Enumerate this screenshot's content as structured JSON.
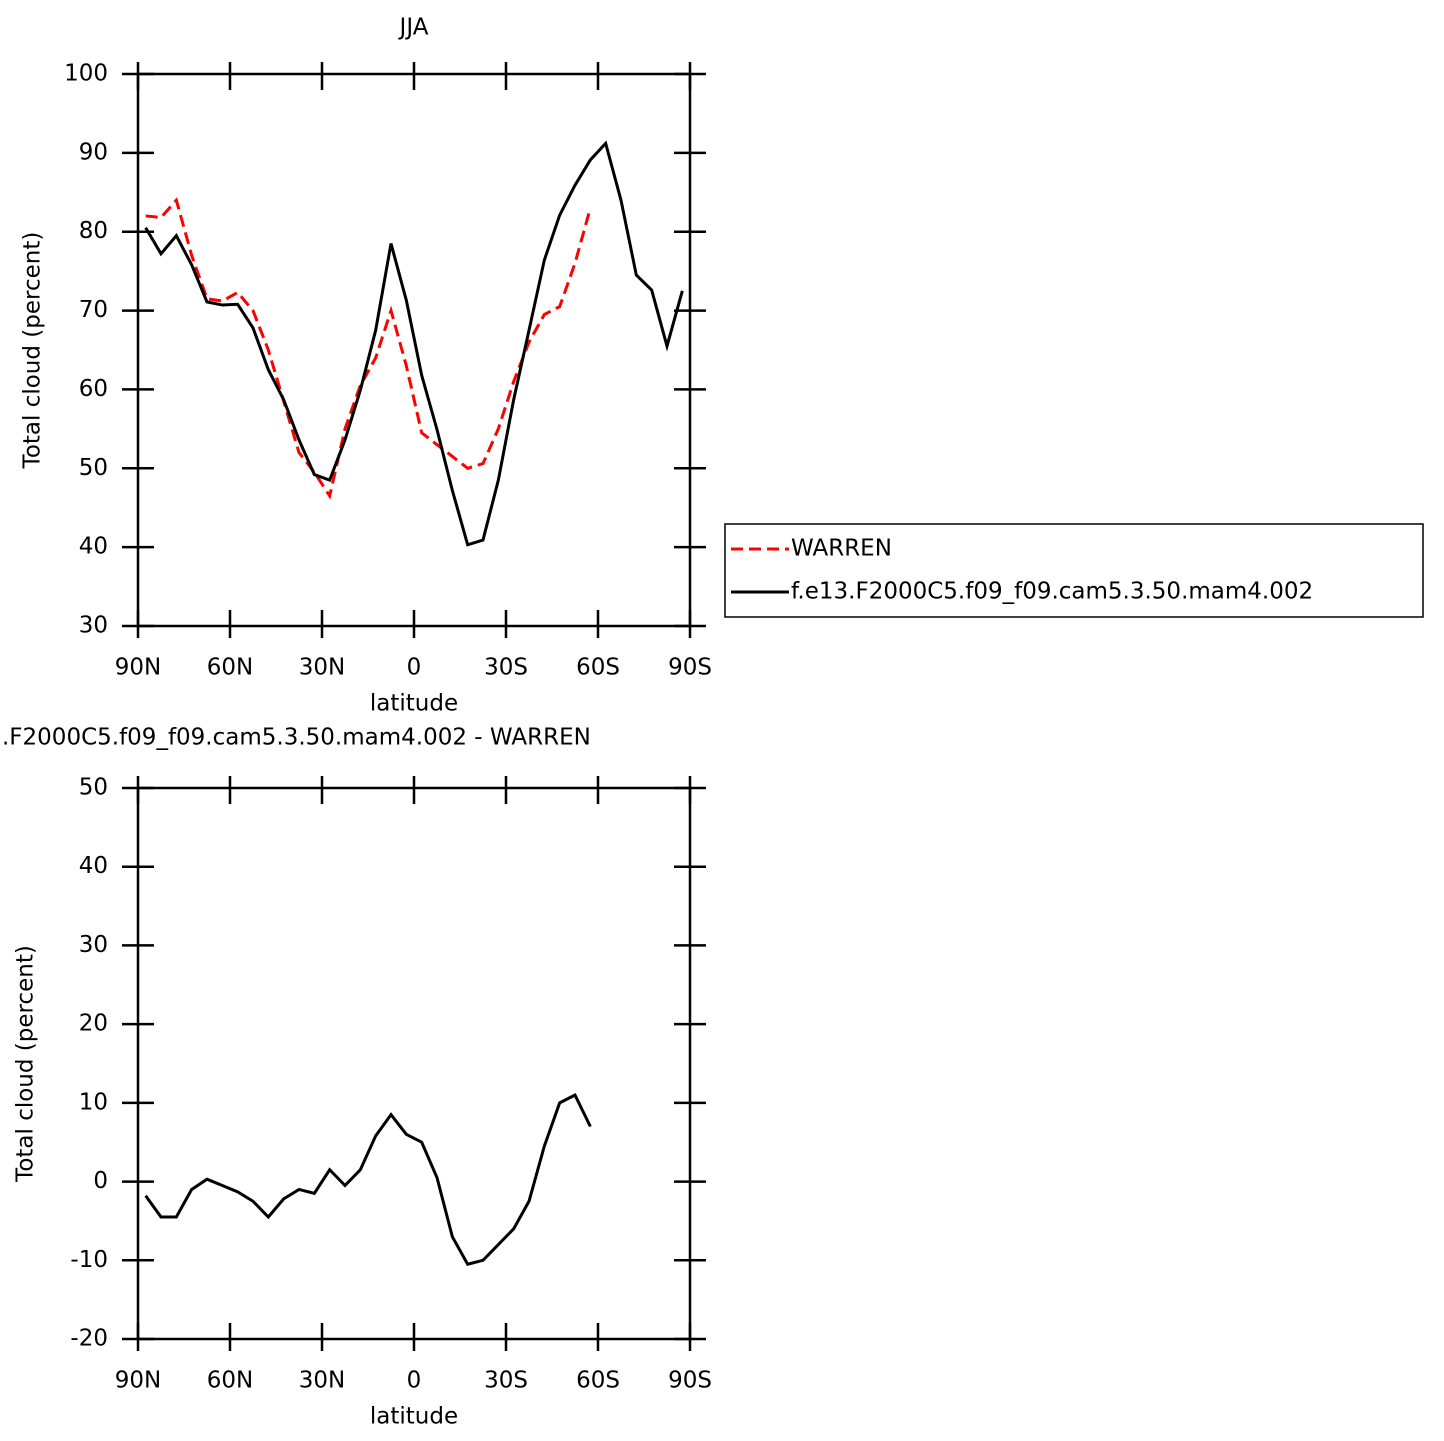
{
  "chart_data": [
    {
      "type": "line",
      "title": "JJA",
      "xlabel": "latitude",
      "ylabel": "Total cloud (percent)",
      "x": [
        87.5,
        82.5,
        77.5,
        72.5,
        67.5,
        62.5,
        57.5,
        52.5,
        47.5,
        42.5,
        37.5,
        32.5,
        27.5,
        22.5,
        17.5,
        12.5,
        7.5,
        2.5,
        -2.5,
        -7.5,
        -12.5,
        -17.5,
        -22.5,
        -27.5,
        -32.5,
        -37.5,
        -42.5,
        -47.5,
        -52.5,
        -57.5,
        -62.5,
        -67.5,
        -72.5,
        -77.5,
        -82.5,
        -87.5
      ],
      "series": [
        {
          "name": "WARREN",
          "color": "#ff0000",
          "dashed": true,
          "values": [
            82,
            81.8,
            84,
            77,
            71.5,
            71.2,
            72.3,
            70,
            65,
            58.5,
            52,
            49.5,
            46.5,
            55,
            60.5,
            64,
            70,
            63,
            54.5,
            53,
            51.5,
            50,
            50.6,
            55,
            61,
            66,
            69.5,
            70.5,
            76,
            83,
            null,
            null,
            null,
            null,
            null,
            null
          ]
        },
        {
          "name": "f.e13.F2000C5.f09_f09.cam5.3.50.mam4.002",
          "color": "#000000",
          "dashed": false,
          "values": [
            80.5,
            77.2,
            79.5,
            75.8,
            71.1,
            70.7,
            70.8,
            67.8,
            62.5,
            58.7,
            53.6,
            49.2,
            48.5,
            53.6,
            59.9,
            67.5,
            78.5,
            71.3,
            61.8,
            54.9,
            47.2,
            40.3,
            40.9,
            48.5,
            58.7,
            67.5,
            76.4,
            82.1,
            85.9,
            89.1,
            91.2,
            84.0,
            74.5,
            72.6,
            65.5,
            72.5
          ]
        }
      ],
      "xlim": [
        90,
        -90
      ],
      "xticks": [
        {
          "value": 90,
          "label": "90N"
        },
        {
          "value": 60,
          "label": "60N"
        },
        {
          "value": 30,
          "label": "30N"
        },
        0,
        {
          "value": -30,
          "label": "30S"
        },
        {
          "value": -60,
          "label": "60S"
        },
        {
          "value": -90,
          "label": "90S"
        }
      ],
      "ylim": [
        30,
        100
      ],
      "yticks": [
        30,
        40,
        50,
        60,
        70,
        80,
        90,
        100
      ],
      "legend": "right"
    },
    {
      "type": "line",
      "title": ".F2000C5.f09_f09.cam5.3.50.mam4.002 - WARREN",
      "xlabel": "latitude",
      "ylabel": "Total cloud (percent)",
      "x": [
        87.5,
        82.5,
        77.5,
        72.5,
        67.5,
        62.5,
        57.5,
        52.5,
        47.5,
        42.5,
        37.5,
        32.5,
        27.5,
        22.5,
        17.5,
        12.5,
        7.5,
        2.5,
        -2.5,
        -7.5,
        -12.5,
        -17.5,
        -22.5,
        -27.5,
        -32.5,
        -37.5,
        -42.5,
        -47.5,
        -52.5,
        -57.5,
        -62.5,
        -67.5,
        -72.5,
        -77.5,
        -82.5,
        -87.5
      ],
      "series": [
        {
          "color": "#000000",
          "dashed": false,
          "values": [
            -1.8,
            -4.5,
            -4.5,
            -1,
            0.3,
            -0.5,
            -1.3,
            -2.5,
            -4.5,
            -2.2,
            -1,
            -1.5,
            1.5,
            -0.5,
            1.5,
            5.8,
            8.5,
            6,
            5,
            0.5,
            -7,
            -10.5,
            -10,
            -8,
            -6,
            -2.5,
            4.5,
            10,
            11,
            7,
            null,
            null,
            null,
            null,
            null,
            null
          ]
        }
      ],
      "xlim": [
        90,
        -90
      ],
      "xticks": [
        {
          "value": 90,
          "label": "90N"
        },
        {
          "value": 60,
          "label": "60N"
        },
        {
          "value": 30,
          "label": "30N"
        },
        0,
        {
          "value": -30,
          "label": "30S"
        },
        {
          "value": -60,
          "label": "60S"
        },
        {
          "value": -90,
          "label": "90S"
        }
      ],
      "ylim": [
        -20,
        50
      ],
      "yticks": [
        -20,
        -10,
        0,
        10,
        20,
        30,
        40,
        50
      ]
    }
  ]
}
